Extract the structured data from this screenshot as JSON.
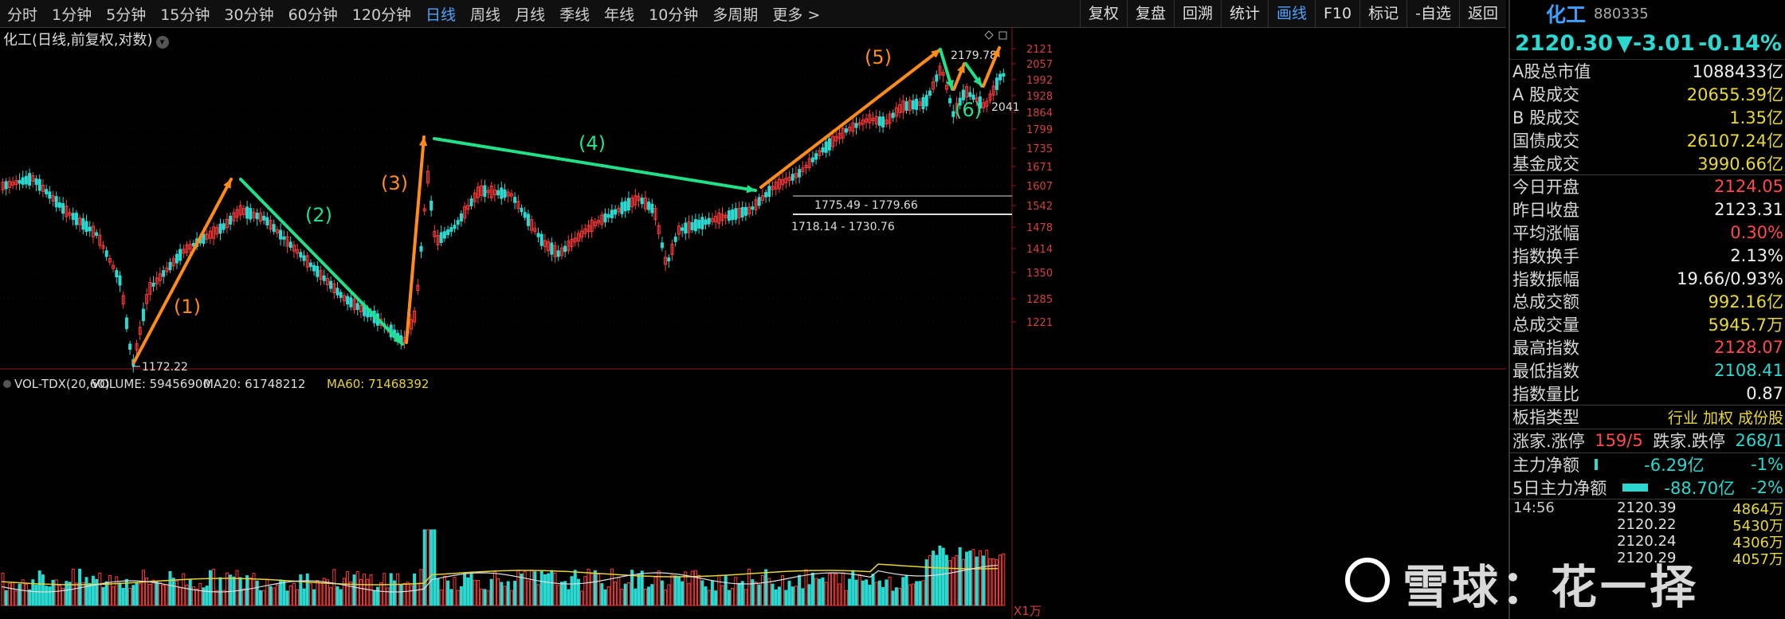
{
  "toolbar": {
    "timeframes": [
      "分时",
      "1分钟",
      "5分钟",
      "15分钟",
      "30分钟",
      "60分钟",
      "120分钟",
      "日线",
      "周线",
      "月线",
      "季线",
      "年线",
      "10分钟",
      "多周期",
      "更多 >"
    ],
    "active_timeframe_index": 7,
    "tools": [
      "复权",
      "复盘",
      "回溯",
      "统计",
      "画线",
      "F10",
      "标记",
      "-自选",
      "返回"
    ],
    "active_tool_index": 4
  },
  "chart": {
    "title": "化工(日线,前复权,对数)",
    "price_axis": [
      "2121",
      "2057",
      "1992",
      "1928",
      "1864",
      "1799",
      "1735",
      "1671",
      "1607",
      "1542",
      "1478",
      "1414",
      "1350",
      "1285",
      "1221"
    ],
    "annotations": {
      "low": "1172.22",
      "high": "2179.78",
      "right_level": "2041",
      "range1": "1775.49 - 1779.66",
      "range2": "1718.14 - 1730.76",
      "waves": [
        "(1)",
        "(2)",
        "(3)",
        "(4)",
        "(5)",
        "(6)"
      ]
    },
    "volume_legend": {
      "name": "VOL-TDX(20,60)",
      "volume": "VOLUME: 59456900",
      "ma20": "MA20: 61748212",
      "ma60": "MA60: 71468392"
    },
    "volume_axis_unit": "X1万",
    "colors": {
      "up": "#ff3b3b",
      "down": "#2bd9d0",
      "orange": "#ff8c1a",
      "green": "#22e08a",
      "ma_yellow": "#e6d23a",
      "ma_white": "#e0e0e0"
    }
  },
  "panel": {
    "name": "化工",
    "code": "880335",
    "price": "2120.30",
    "change": "▼-3.01",
    "change_pct": "-0.14%",
    "rows": [
      {
        "label": "A股总市值",
        "value": "1088433亿",
        "cls": "white"
      },
      {
        "label": "A 股成交",
        "value": "20655.39亿",
        "cls": "yel"
      },
      {
        "label": "B 股成交",
        "value": "1.35亿",
        "cls": "yel"
      },
      {
        "label": "国债成交",
        "value": "26107.24亿",
        "cls": "yel"
      },
      {
        "label": "基金成交",
        "value": "3990.66亿",
        "cls": "yel"
      },
      {
        "label": "今日开盘",
        "value": "2124.05",
        "cls": "red"
      },
      {
        "label": "昨日收盘",
        "value": "2123.31",
        "cls": "white"
      },
      {
        "label": "平均涨幅",
        "value": "0.30%",
        "cls": "red"
      },
      {
        "label": "指数换手",
        "value": "2.13%",
        "cls": "white"
      },
      {
        "label": "指数振幅",
        "value": "19.66/0.93%",
        "cls": "white"
      },
      {
        "label": "总成交额",
        "value": "992.16亿",
        "cls": "yel"
      },
      {
        "label": "总成交量",
        "value": "5945.7万",
        "cls": "yel"
      },
      {
        "label": "最高指数",
        "value": "2128.07",
        "cls": "red"
      },
      {
        "label": "最低指数",
        "value": "2108.41",
        "cls": "cyan"
      },
      {
        "label": "指数量比",
        "value": "0.87",
        "cls": "white"
      }
    ],
    "board_type_label": "板指类型",
    "board_type_value": "行业 加权 成份股",
    "breadth": {
      "l1": "涨家.涨停",
      "v1": "159/5",
      "l2": "跌家.跌停",
      "v2": "268/1"
    },
    "flow1": {
      "label": "主力净额",
      "value": "-6.29亿",
      "pct": "-1%"
    },
    "flow2": {
      "label": "5日主力净额",
      "value": "-88.70亿",
      "pct": "-2%"
    },
    "ticks": [
      {
        "time": "14:56",
        "price": "2120.39",
        "vol": "4864万"
      },
      {
        "time": "",
        "price": "2120.22",
        "vol": "5430万"
      },
      {
        "time": "",
        "price": "2120.24",
        "vol": "4306万"
      },
      {
        "time": "",
        "price": "2120.29",
        "vol": "4057万"
      }
    ]
  },
  "watermark": "雪球：花一择"
}
